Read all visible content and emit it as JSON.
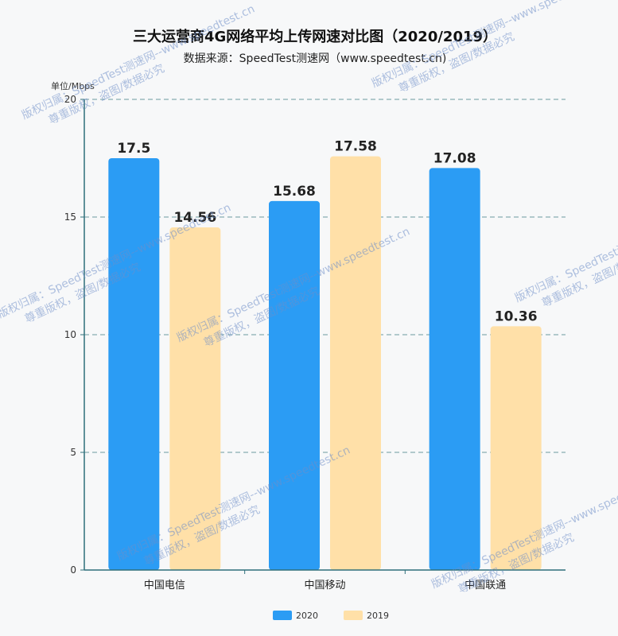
{
  "chart_data": {
    "type": "bar",
    "title": "三大运营商4G网络平均上传网速对比图（2020/2019）",
    "subtitle": "数据来源：SpeedTest测速网（www.speedtest.cn)",
    "unit_label": "单位/Mbps",
    "categories": [
      "中国电信",
      "中国移动",
      "中国联通"
    ],
    "series": [
      {
        "name": "2020",
        "values": [
          17.5,
          15.68,
          17.08
        ],
        "color": "#2b9cf4"
      },
      {
        "name": "2019",
        "values": [
          14.56,
          17.58,
          10.36
        ],
        "color": "#ffe0a8"
      }
    ],
    "data_labels": [
      [
        "17.5",
        "15.68",
        "17.08"
      ],
      [
        "14.56",
        "17.58",
        "10.36"
      ]
    ],
    "ylim": [
      0,
      20
    ],
    "yticks": [
      0,
      5,
      10,
      15,
      20
    ],
    "ytick_labels": [
      "0",
      "5",
      "10",
      "15",
      "20"
    ],
    "grid": true,
    "legend_position": "bottom-center",
    "axis_color": "#2f6f7a",
    "grid_color": "#6b9aa0"
  },
  "watermark": {
    "line1": "版权归属：SpeedTest测速网--www.speedtest.cn",
    "line2": "尊重版权，盗图/数据必究"
  }
}
